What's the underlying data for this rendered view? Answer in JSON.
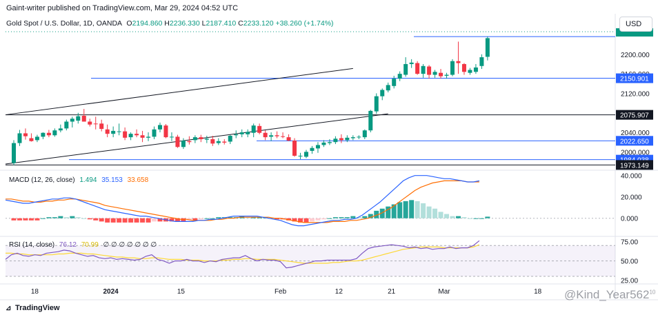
{
  "publish_line": "Gaint-writer published on TradingView.com, Mar 29, 2024 04:52 UTC",
  "currency_button": "USD",
  "logo_text": "TradingView",
  "watermark": "@Kind_Year562",
  "watermark_superscript": "10",
  "legend": {
    "symbol": "Gold Spot / U.S. Dollar, 1D, OANDA",
    "o_label": "O",
    "o_value": "2194.860",
    "h_label": "H",
    "h_value": "2236.330",
    "l_label": "L",
    "l_value": "2187.410",
    "c_label": "C",
    "c_value": "2233.120",
    "change": "+38.260 (+1.74%)"
  },
  "macd_legend": {
    "label": "MACD (12, 26, close)",
    "hist": "1.494",
    "macd": "35.153",
    "signal": "33.658"
  },
  "rsi_legend": {
    "label": "RSI (14, close)",
    "rsi": "76.12",
    "ma": "70.99",
    "extra": "∅ ∅ ∅ ∅ ∅ ∅ ∅"
  },
  "colors": {
    "bull": "#089981",
    "bear": "#f23645",
    "level": "#2962ff",
    "support": "#131722",
    "macd_line": "#2962ff",
    "signal_line": "#ff6d00",
    "rsi_line": "#7e57c2",
    "rsi_ma": "#fdd835",
    "hist_pos_strong": "#26a69a",
    "hist_pos_weak": "#b2dfdb",
    "hist_neg_strong": "#ff5252",
    "hist_neg_weak": "#ffcdd2"
  },
  "chart_data": {
    "type": "candlestick",
    "title": "Gold Spot / U.S. Dollar, 1D, OANDA",
    "ylim": [
      1968,
      2252
    ],
    "price_ticks": [
      "2200.000",
      "2160.000",
      "2120.000",
      "2040.000",
      "2000.000"
    ],
    "price_tick_values": [
      2200,
      2160,
      2120,
      2040,
      2000
    ],
    "level_labels": [
      {
        "value": 2150.901,
        "text": "2150.901",
        "style": "blue"
      },
      {
        "value": 2075.907,
        "text": "2075.907",
        "style": "dark"
      },
      {
        "value": 2022.65,
        "text": "2022.650",
        "style": "blue"
      },
      {
        "value": 1984.038,
        "text": "1984.038",
        "style": "blue"
      },
      {
        "value": 1973.149,
        "text": "1973.149",
        "style": "dark"
      }
    ],
    "current_price": 2233.12,
    "horizontal_lines": [
      {
        "value": 2236.3,
        "color": "level"
      },
      {
        "value": 2150.9,
        "color": "level"
      },
      {
        "value": 2075.9,
        "color": "support"
      },
      {
        "value": 2022.65,
        "color": "level"
      },
      {
        "value": 1984.04,
        "color": "level"
      },
      {
        "value": 1973.15,
        "color": "support"
      }
    ],
    "trend_lines": [
      {
        "from": [
          0,
          2076
        ],
        "to": [
          58,
          2171
        ]
      },
      {
        "from": [
          0,
          1975
        ],
        "to": [
          64,
          2078
        ]
      }
    ],
    "x_labels": [
      {
        "index": 5,
        "text": "18"
      },
      {
        "index": 18,
        "text": "2024"
      },
      {
        "index": 30,
        "text": "15"
      },
      {
        "index": 47,
        "text": "Feb"
      },
      {
        "index": 57,
        "text": "12"
      },
      {
        "index": 66,
        "text": "21"
      },
      {
        "index": 75,
        "text": "Mar"
      },
      {
        "index": 91,
        "text": "18"
      }
    ],
    "candles": [
      {
        "o": 1977,
        "h": 2024,
        "l": 1973,
        "c": 2018
      },
      {
        "o": 2018,
        "h": 2045,
        "l": 2012,
        "c": 2038
      },
      {
        "o": 2038,
        "h": 2048,
        "l": 2025,
        "c": 2032
      },
      {
        "o": 2028,
        "h": 2038,
        "l": 2021,
        "c": 2022
      },
      {
        "o": 2024,
        "h": 2035,
        "l": 2020,
        "c": 2031
      },
      {
        "o": 2031,
        "h": 2040,
        "l": 2026,
        "c": 2039
      },
      {
        "o": 2039,
        "h": 2045,
        "l": 2030,
        "c": 2034
      },
      {
        "o": 2034,
        "h": 2048,
        "l": 2031,
        "c": 2044
      },
      {
        "o": 2044,
        "h": 2056,
        "l": 2040,
        "c": 2048
      },
      {
        "o": 2048,
        "h": 2066,
        "l": 2044,
        "c": 2062
      },
      {
        "o": 2062,
        "h": 2072,
        "l": 2050,
        "c": 2068
      },
      {
        "o": 2064,
        "h": 2080,
        "l": 2058,
        "c": 2073
      },
      {
        "o": 2074,
        "h": 2088,
        "l": 2062,
        "c": 2062
      },
      {
        "o": 2062,
        "h": 2068,
        "l": 2052,
        "c": 2056
      },
      {
        "o": 2058,
        "h": 2072,
        "l": 2046,
        "c": 2057
      },
      {
        "o": 2058,
        "h": 2066,
        "l": 2042,
        "c": 2047
      },
      {
        "o": 2046,
        "h": 2056,
        "l": 2030,
        "c": 2037
      },
      {
        "o": 2037,
        "h": 2052,
        "l": 2030,
        "c": 2043
      },
      {
        "o": 2041,
        "h": 2058,
        "l": 2034,
        "c": 2042
      },
      {
        "o": 2042,
        "h": 2050,
        "l": 2024,
        "c": 2029
      },
      {
        "o": 2030,
        "h": 2040,
        "l": 2024,
        "c": 2037
      },
      {
        "o": 2037,
        "h": 2046,
        "l": 2030,
        "c": 2034
      },
      {
        "o": 2034,
        "h": 2043,
        "l": 2020,
        "c": 2029
      },
      {
        "o": 2029,
        "h": 2040,
        "l": 2022,
        "c": 2031
      },
      {
        "o": 2031,
        "h": 2052,
        "l": 2026,
        "c": 2046
      },
      {
        "o": 2046,
        "h": 2060,
        "l": 2040,
        "c": 2055
      },
      {
        "o": 2054,
        "h": 2057,
        "l": 2028,
        "c": 2030
      },
      {
        "o": 2030,
        "h": 2040,
        "l": 2022,
        "c": 2031
      },
      {
        "o": 2031,
        "h": 2035,
        "l": 2008,
        "c": 2010
      },
      {
        "o": 2010,
        "h": 2028,
        "l": 2006,
        "c": 2023
      },
      {
        "o": 2022,
        "h": 2032,
        "l": 2015,
        "c": 2020
      },
      {
        "o": 2024,
        "h": 2034,
        "l": 2018,
        "c": 2030
      },
      {
        "o": 2030,
        "h": 2035,
        "l": 2020,
        "c": 2026
      },
      {
        "o": 2025,
        "h": 2033,
        "l": 2018,
        "c": 2027
      },
      {
        "o": 2026,
        "h": 2033,
        "l": 2012,
        "c": 2017
      },
      {
        "o": 2018,
        "h": 2028,
        "l": 2014,
        "c": 2022
      },
      {
        "o": 2021,
        "h": 2026,
        "l": 2015,
        "c": 2019
      },
      {
        "o": 2021,
        "h": 2035,
        "l": 2016,
        "c": 2033
      },
      {
        "o": 2034,
        "h": 2044,
        "l": 2028,
        "c": 2036
      },
      {
        "o": 2036,
        "h": 2046,
        "l": 2030,
        "c": 2040
      },
      {
        "o": 2036,
        "h": 2046,
        "l": 2030,
        "c": 2041
      },
      {
        "o": 2039,
        "h": 2058,
        "l": 2030,
        "c": 2054
      },
      {
        "o": 2053,
        "h": 2058,
        "l": 2036,
        "c": 2039
      },
      {
        "o": 2039,
        "h": 2044,
        "l": 2024,
        "c": 2030
      },
      {
        "o": 2031,
        "h": 2040,
        "l": 2022,
        "c": 2034
      },
      {
        "o": 2034,
        "h": 2042,
        "l": 2028,
        "c": 2032
      },
      {
        "o": 2032,
        "h": 2040,
        "l": 2028,
        "c": 2031
      },
      {
        "o": 2030,
        "h": 2036,
        "l": 2022,
        "c": 2023
      },
      {
        "o": 2023,
        "h": 2028,
        "l": 1990,
        "c": 1992
      },
      {
        "o": 1992,
        "h": 1998,
        "l": 1985,
        "c": 1992
      },
      {
        "o": 1990,
        "h": 2004,
        "l": 1987,
        "c": 2000
      },
      {
        "o": 2002,
        "h": 2012,
        "l": 1996,
        "c": 2008
      },
      {
        "o": 2007,
        "h": 2020,
        "l": 1998,
        "c": 2014
      },
      {
        "o": 2014,
        "h": 2024,
        "l": 2010,
        "c": 2019
      },
      {
        "o": 2018,
        "h": 2026,
        "l": 2014,
        "c": 2020
      },
      {
        "o": 2020,
        "h": 2032,
        "l": 2016,
        "c": 2027
      },
      {
        "o": 2028,
        "h": 2036,
        "l": 2018,
        "c": 2024
      },
      {
        "o": 2024,
        "h": 2034,
        "l": 2020,
        "c": 2029
      },
      {
        "o": 2028,
        "h": 2034,
        "l": 2024,
        "c": 2030
      },
      {
        "o": 2030,
        "h": 2034,
        "l": 2026,
        "c": 2031
      },
      {
        "o": 2030,
        "h": 2046,
        "l": 2026,
        "c": 2044
      },
      {
        "o": 2044,
        "h": 2086,
        "l": 2040,
        "c": 2084
      },
      {
        "o": 2083,
        "h": 2120,
        "l": 2078,
        "c": 2114
      },
      {
        "o": 2114,
        "h": 2130,
        "l": 2106,
        "c": 2127
      },
      {
        "o": 2126,
        "h": 2142,
        "l": 2122,
        "c": 2137
      },
      {
        "o": 2135,
        "h": 2156,
        "l": 2130,
        "c": 2150
      },
      {
        "o": 2150,
        "h": 2165,
        "l": 2145,
        "c": 2160
      },
      {
        "o": 2158,
        "h": 2194,
        "l": 2154,
        "c": 2180
      },
      {
        "o": 2180,
        "h": 2190,
        "l": 2172,
        "c": 2183
      },
      {
        "o": 2182,
        "h": 2186,
        "l": 2158,
        "c": 2160
      },
      {
        "o": 2160,
        "h": 2180,
        "l": 2152,
        "c": 2176
      },
      {
        "o": 2175,
        "h": 2178,
        "l": 2150,
        "c": 2158
      },
      {
        "o": 2158,
        "h": 2168,
        "l": 2152,
        "c": 2164
      },
      {
        "o": 2162,
        "h": 2170,
        "l": 2150,
        "c": 2155
      },
      {
        "o": 2156,
        "h": 2162,
        "l": 2150,
        "c": 2158
      },
      {
        "o": 2158,
        "h": 2190,
        "l": 2155,
        "c": 2186
      },
      {
        "o": 2186,
        "h": 2226,
        "l": 2160,
        "c": 2182
      },
      {
        "o": 2180,
        "h": 2182,
        "l": 2158,
        "c": 2164
      },
      {
        "o": 2162,
        "h": 2172,
        "l": 2158,
        "c": 2168
      },
      {
        "o": 2164,
        "h": 2180,
        "l": 2160,
        "c": 2173
      },
      {
        "o": 2176,
        "h": 2200,
        "l": 2170,
        "c": 2194
      },
      {
        "o": 2194.86,
        "h": 2236.33,
        "l": 2187.41,
        "c": 2233.12
      }
    ],
    "macd": {
      "ylim": [
        -15,
        43
      ],
      "ticks": [
        "40.000",
        "20.000",
        "0.000"
      ],
      "tick_values": [
        40,
        20,
        0
      ],
      "macd_line": [
        17,
        16,
        15,
        14,
        14,
        15,
        16,
        17,
        18,
        18,
        19,
        19,
        18,
        16,
        14,
        12,
        10,
        8,
        7,
        6,
        5,
        4,
        3,
        2,
        2,
        1,
        0,
        -1,
        -2,
        -3,
        -3,
        -3,
        -3,
        -2,
        -2,
        -1,
        -1,
        0,
        1,
        2,
        2,
        2,
        2,
        2,
        1,
        0,
        -1,
        -2,
        -4,
        -6,
        -7,
        -7,
        -6,
        -5,
        -4,
        -3,
        -2,
        -2,
        -1,
        -1,
        0,
        3,
        7,
        11,
        15,
        20,
        25,
        30,
        35,
        38,
        40,
        40,
        40,
        39,
        38,
        37,
        37,
        36,
        35,
        34,
        34,
        35
      ],
      "signal_line": [
        18,
        18,
        17,
        16,
        16,
        15,
        15,
        16,
        16,
        17,
        17,
        18,
        18,
        17,
        16,
        15,
        14,
        12,
        11,
        10,
        9,
        8,
        7,
        6,
        5,
        4,
        3,
        2,
        1,
        0,
        -1,
        -1,
        -2,
        -2,
        -2,
        -2,
        -1,
        -1,
        0,
        0,
        1,
        1,
        1,
        1,
        1,
        1,
        0,
        0,
        -1,
        -2,
        -3,
        -4,
        -4,
        -4,
        -4,
        -4,
        -3,
        -3,
        -3,
        -2,
        -2,
        -1,
        0,
        2,
        4,
        7,
        10,
        14,
        18,
        22,
        26,
        29,
        31,
        33,
        34,
        35,
        35,
        35,
        35,
        34,
        34,
        34
      ],
      "histogram": [
        -2,
        -2,
        -2,
        -2,
        -2,
        0,
        1,
        1,
        2,
        1,
        2,
        1,
        0,
        -1,
        -2,
        -3,
        -4,
        -4,
        -4,
        -4,
        -4,
        -4,
        -4,
        -4,
        -3,
        -3,
        -3,
        -3,
        -3,
        -3,
        -2,
        -2,
        -1,
        0,
        0,
        1,
        1,
        1,
        1,
        2,
        1,
        1,
        1,
        1,
        0,
        -1,
        -1,
        -2,
        -3,
        -4,
        -4,
        -3,
        -2,
        -1,
        0,
        1,
        1,
        1,
        2,
        1,
        2,
        4,
        7,
        9,
        11,
        13,
        15,
        16,
        17,
        16,
        14,
        11,
        9,
        6,
        4,
        2,
        2,
        1,
        0,
        0,
        0,
        1.494
      ]
    },
    "rsi": {
      "ylim": [
        22,
        80
      ],
      "ticks": [
        "75.00",
        "50.00",
        "25.00"
      ],
      "tick_values": [
        75,
        50,
        25
      ],
      "band": [
        30,
        70
      ],
      "rsi_line": [
        52,
        58,
        60,
        57,
        56,
        58,
        57,
        60,
        61,
        62,
        64,
        63,
        60,
        58,
        56,
        57,
        54,
        53,
        54,
        52,
        53,
        52,
        51,
        52,
        56,
        58,
        52,
        50,
        47,
        50,
        50,
        52,
        50,
        50,
        48,
        50,
        49,
        52,
        53,
        54,
        54,
        57,
        53,
        50,
        52,
        51,
        51,
        49,
        41,
        42,
        44,
        46,
        48,
        50,
        50,
        51,
        51,
        51,
        51,
        51,
        53,
        60,
        66,
        68,
        69,
        70,
        71,
        70,
        69,
        67,
        68,
        66,
        67,
        65,
        66,
        66,
        68,
        66,
        67,
        67,
        70,
        76.12
      ],
      "rsi_ma": [
        60,
        60,
        59,
        59,
        58,
        58,
        58,
        58,
        58,
        59,
        59,
        60,
        60,
        60,
        59,
        59,
        58,
        57,
        56,
        55,
        55,
        54,
        54,
        53,
        53,
        54,
        54,
        53,
        52,
        52,
        52,
        51,
        51,
        51,
        50,
        50,
        50,
        51,
        51,
        52,
        52,
        53,
        53,
        52,
        52,
        52,
        52,
        51,
        50,
        49,
        48,
        47,
        47,
        47,
        47,
        47,
        48,
        48,
        49,
        50,
        50,
        51,
        53,
        55,
        57,
        59,
        61,
        63,
        65,
        66,
        67,
        68,
        68,
        68,
        68,
        67,
        67,
        67,
        67,
        67,
        68,
        70.99
      ]
    }
  }
}
